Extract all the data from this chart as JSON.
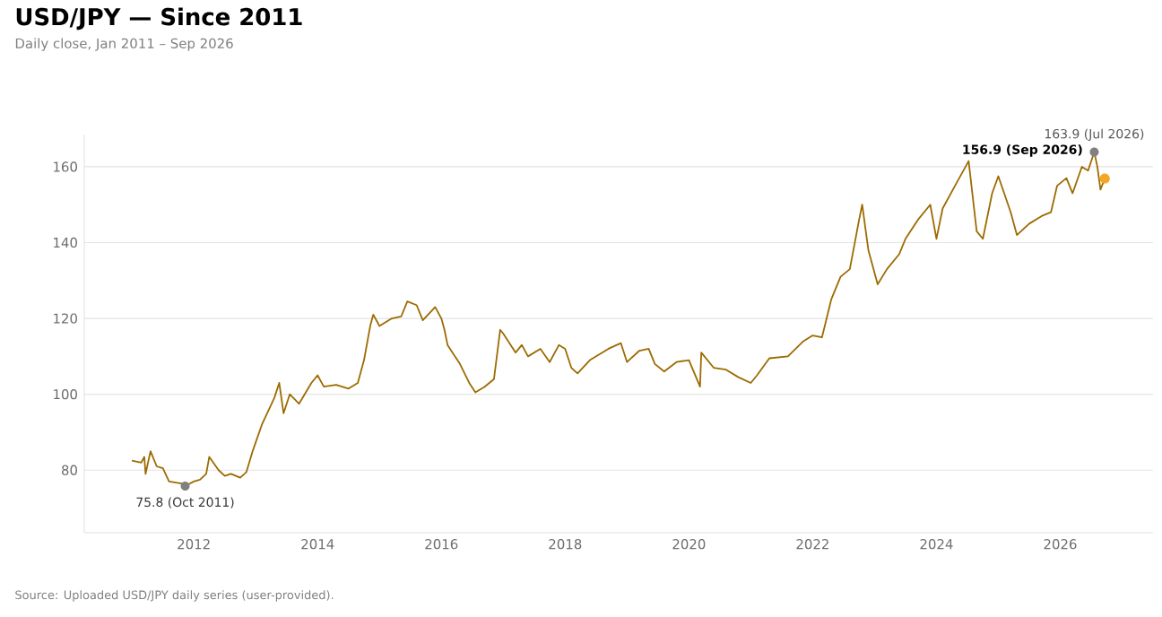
{
  "chart_data": {
    "type": "line",
    "title": "USD/JPY — Since 2011",
    "subtitle": "Daily close, Jan 2011 – Sep 2026",
    "x": [
      2011.0,
      2011.15,
      2011.2,
      2011.22,
      2011.3,
      2011.4,
      2011.5,
      2011.6,
      2011.8,
      2011.86,
      2012.0,
      2012.1,
      2012.2,
      2012.25,
      2012.4,
      2012.5,
      2012.6,
      2012.75,
      2012.85,
      2012.95,
      2013.1,
      2013.3,
      2013.38,
      2013.45,
      2013.55,
      2013.7,
      2013.9,
      2014.0,
      2014.1,
      2014.3,
      2014.5,
      2014.65,
      2014.75,
      2014.85,
      2014.9,
      2015.0,
      2015.2,
      2015.35,
      2015.45,
      2015.6,
      2015.7,
      2015.9,
      2016.0,
      2016.05,
      2016.1,
      2016.3,
      2016.45,
      2016.55,
      2016.7,
      2016.85,
      2016.95,
      2017.0,
      2017.2,
      2017.3,
      2017.4,
      2017.6,
      2017.75,
      2017.9,
      2018.0,
      2018.1,
      2018.2,
      2018.4,
      2018.7,
      2018.9,
      2019.0,
      2019.2,
      2019.35,
      2019.45,
      2019.6,
      2019.8,
      2020.0,
      2020.18,
      2020.2,
      2020.4,
      2020.6,
      2020.8,
      2021.0,
      2021.1,
      2021.3,
      2021.6,
      2021.85,
      2022.0,
      2022.15,
      2022.3,
      2022.45,
      2022.6,
      2022.75,
      2022.8,
      2022.9,
      2023.05,
      2023.2,
      2023.4,
      2023.5,
      2023.7,
      2023.9,
      2024.0,
      2024.1,
      2024.3,
      2024.52,
      2024.65,
      2024.75,
      2024.9,
      2025.0,
      2025.2,
      2025.3,
      2025.5,
      2025.7,
      2025.85,
      2025.95,
      2026.1,
      2026.2,
      2026.35,
      2026.45,
      2026.55,
      2026.6,
      2026.65,
      2026.72
    ],
    "series": [
      {
        "color": "#9c6b00",
        "values": [
          82.5,
          82,
          83.5,
          79,
          85,
          81,
          80.5,
          77,
          76.5,
          75.8,
          77,
          77.5,
          79,
          83.5,
          80,
          78.5,
          79,
          78,
          79.5,
          85,
          92,
          99,
          103,
          95,
          100,
          97.5,
          103,
          105,
          102,
          102.5,
          101.5,
          103,
          109,
          118,
          121,
          118,
          120,
          120.5,
          124.5,
          123.5,
          119.5,
          123,
          120,
          117,
          113,
          108,
          103,
          100.5,
          102,
          104,
          117,
          116,
          111,
          113,
          110,
          112,
          108.5,
          113,
          112,
          107,
          105.5,
          109,
          112,
          113.5,
          108.5,
          111.5,
          112,
          108,
          106,
          108.5,
          109,
          102,
          111,
          107,
          106.5,
          104.5,
          103,
          105,
          109.5,
          110,
          114,
          115.5,
          115,
          125,
          131,
          133,
          146,
          150,
          138,
          129,
          133,
          137,
          141,
          146,
          150,
          141,
          149,
          155,
          161.5,
          143,
          141,
          153,
          157.5,
          148,
          142,
          145,
          147,
          148,
          155,
          157,
          153,
          160,
          159,
          163.9,
          160,
          154,
          156.9
        ]
      }
    ],
    "xlim": [
      2010.23,
      2027.5
    ],
    "ylim": [
      63.5,
      168.5
    ],
    "xticks": [
      2012,
      2014,
      2016,
      2018,
      2020,
      2022,
      2024,
      2026
    ],
    "yticks": [
      80,
      100,
      120,
      140,
      160
    ],
    "grid": "y",
    "marker": "none",
    "line_style": "solid",
    "annotations": [
      {
        "text": "75.8  (Oct 2011)",
        "x": 2011.86,
        "y": 75.8
      },
      {
        "text": "163.9  (Jul 2026)",
        "x": 2026.55,
        "y": 163.9
      },
      {
        "text": "156.9  (Sep 2026)",
        "x": 2026.72,
        "y": 156.9
      },
      "Source: Uploaded USD/JPY daily series (user-provided)."
    ]
  }
}
